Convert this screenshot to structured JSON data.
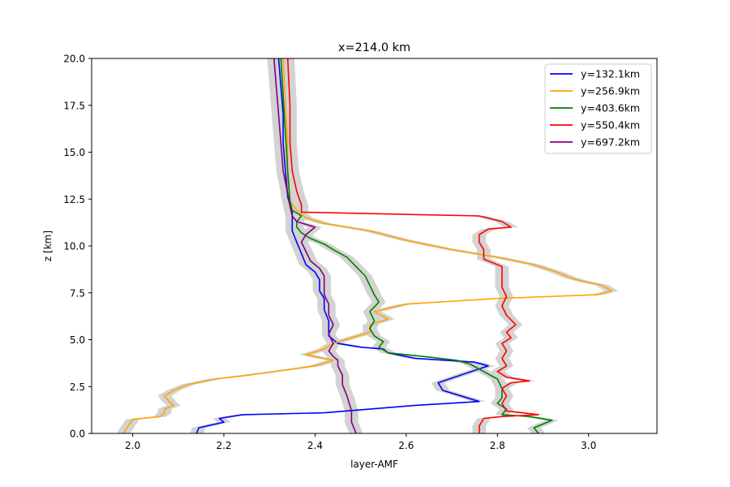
{
  "chart_data": {
    "type": "line",
    "title": "x=214.0 km",
    "xlabel": "layer-AMF",
    "ylabel": "z [km]",
    "xlim": [
      1.91,
      3.15
    ],
    "ylim": [
      0,
      20
    ],
    "xticks": [
      2.0,
      2.2,
      2.4,
      2.6,
      2.8,
      3.0
    ],
    "xtick_labels": [
      "2.0",
      "2.2",
      "2.4",
      "2.6",
      "2.8",
      "3.0"
    ],
    "yticks": [
      0,
      2.5,
      5,
      7.5,
      10,
      12.5,
      15,
      17.5,
      20
    ],
    "ytick_labels": [
      "0.0",
      "2.5",
      "5.0",
      "7.5",
      "10.0",
      "12.5",
      "15.0",
      "17.5",
      "20.0"
    ],
    "grid": false,
    "legend_position": "top-right",
    "uncertainty_band": {
      "color": "#d3d3d3",
      "half_width": 0.015
    },
    "series": [
      {
        "name": "y=132.1km",
        "color": "#0000ff",
        "points": [
          [
            2.14,
            0.0
          ],
          [
            2.145,
            0.3
          ],
          [
            2.2,
            0.6
          ],
          [
            2.19,
            0.8
          ],
          [
            2.24,
            1.0
          ],
          [
            2.42,
            1.1
          ],
          [
            2.62,
            1.5
          ],
          [
            2.76,
            1.7
          ],
          [
            2.72,
            2.0
          ],
          [
            2.68,
            2.3
          ],
          [
            2.67,
            2.7
          ],
          [
            2.73,
            3.2
          ],
          [
            2.78,
            3.6
          ],
          [
            2.75,
            3.8
          ],
          [
            2.62,
            4.0
          ],
          [
            2.56,
            4.3
          ],
          [
            2.55,
            4.5
          ],
          [
            2.5,
            4.6
          ],
          [
            2.45,
            4.8
          ],
          [
            2.43,
            5.2
          ],
          [
            2.43,
            6.0
          ],
          [
            2.42,
            6.6
          ],
          [
            2.42,
            7.2
          ],
          [
            2.41,
            7.6
          ],
          [
            2.41,
            8.2
          ],
          [
            2.4,
            8.6
          ],
          [
            2.38,
            9.0
          ],
          [
            2.37,
            9.6
          ],
          [
            2.36,
            10.2
          ],
          [
            2.35,
            10.8
          ],
          [
            2.35,
            11.3
          ],
          [
            2.35,
            11.8
          ],
          [
            2.34,
            12.6
          ],
          [
            2.335,
            14.0
          ],
          [
            2.33,
            15.5
          ],
          [
            2.33,
            17.0
          ],
          [
            2.325,
            18.5
          ],
          [
            2.32,
            20.0
          ]
        ]
      },
      {
        "name": "y=256.9km",
        "color": "#ffa500",
        "points": [
          [
            1.98,
            0.0
          ],
          [
            1.99,
            0.4
          ],
          [
            2.0,
            0.75
          ],
          [
            2.06,
            0.9
          ],
          [
            2.07,
            1.1
          ],
          [
            2.07,
            1.3
          ],
          [
            2.09,
            1.5
          ],
          [
            2.08,
            1.7
          ],
          [
            2.07,
            2.0
          ],
          [
            2.09,
            2.3
          ],
          [
            2.12,
            2.6
          ],
          [
            2.18,
            2.9
          ],
          [
            2.25,
            3.1
          ],
          [
            2.34,
            3.4
          ],
          [
            2.4,
            3.6
          ],
          [
            2.44,
            3.9
          ],
          [
            2.4,
            4.1
          ],
          [
            2.38,
            4.2
          ],
          [
            2.42,
            4.5
          ],
          [
            2.44,
            4.8
          ],
          [
            2.48,
            5.1
          ],
          [
            2.52,
            5.4
          ],
          [
            2.52,
            5.8
          ],
          [
            2.56,
            6.1
          ],
          [
            2.53,
            6.5
          ],
          [
            2.6,
            6.9
          ],
          [
            2.8,
            7.2
          ],
          [
            3.02,
            7.4
          ],
          [
            3.05,
            7.6
          ],
          [
            3.03,
            7.9
          ],
          [
            2.99,
            8.1
          ],
          [
            2.96,
            8.3
          ],
          [
            2.93,
            8.6
          ],
          [
            2.88,
            9.0
          ],
          [
            2.8,
            9.4
          ],
          [
            2.7,
            9.8
          ],
          [
            2.6,
            10.3
          ],
          [
            2.52,
            10.8
          ],
          [
            2.42,
            11.2
          ],
          [
            2.38,
            11.5
          ],
          [
            2.36,
            11.9
          ],
          [
            2.345,
            12.4
          ],
          [
            2.34,
            13.5
          ],
          [
            2.34,
            15.5
          ],
          [
            2.335,
            17.5
          ],
          [
            2.33,
            20.0
          ]
        ]
      },
      {
        "name": "y=403.6km",
        "color": "#008000",
        "points": [
          [
            2.89,
            0.0
          ],
          [
            2.88,
            0.3
          ],
          [
            2.92,
            0.7
          ],
          [
            2.87,
            0.9
          ],
          [
            2.81,
            1.0
          ],
          [
            2.82,
            1.3
          ],
          [
            2.8,
            1.6
          ],
          [
            2.81,
            1.9
          ],
          [
            2.81,
            2.4
          ],
          [
            2.8,
            2.9
          ],
          [
            2.77,
            3.3
          ],
          [
            2.74,
            3.7
          ],
          [
            2.71,
            3.9
          ],
          [
            2.64,
            4.1
          ],
          [
            2.56,
            4.3
          ],
          [
            2.54,
            4.6
          ],
          [
            2.55,
            4.9
          ],
          [
            2.53,
            5.2
          ],
          [
            2.52,
            5.6
          ],
          [
            2.53,
            6.0
          ],
          [
            2.52,
            6.5
          ],
          [
            2.54,
            7.0
          ],
          [
            2.53,
            7.4
          ],
          [
            2.52,
            7.9
          ],
          [
            2.51,
            8.4
          ],
          [
            2.49,
            8.9
          ],
          [
            2.47,
            9.4
          ],
          [
            2.44,
            9.8
          ],
          [
            2.42,
            10.1
          ],
          [
            2.39,
            10.4
          ],
          [
            2.37,
            10.7
          ],
          [
            2.36,
            11.0
          ],
          [
            2.36,
            11.3
          ],
          [
            2.37,
            11.6
          ],
          [
            2.35,
            11.9
          ],
          [
            2.345,
            12.4
          ],
          [
            2.34,
            14.0
          ],
          [
            2.335,
            16.0
          ],
          [
            2.33,
            18.0
          ],
          [
            2.325,
            20.0
          ]
        ]
      },
      {
        "name": "y=550.4km",
        "color": "#ff0000",
        "points": [
          [
            2.76,
            0.0
          ],
          [
            2.76,
            0.4
          ],
          [
            2.77,
            0.8
          ],
          [
            2.81,
            0.9
          ],
          [
            2.89,
            1.0
          ],
          [
            2.82,
            1.2
          ],
          [
            2.81,
            1.6
          ],
          [
            2.82,
            2.0
          ],
          [
            2.81,
            2.4
          ],
          [
            2.83,
            2.7
          ],
          [
            2.87,
            2.8
          ],
          [
            2.82,
            3.0
          ],
          [
            2.8,
            3.3
          ],
          [
            2.82,
            3.6
          ],
          [
            2.81,
            4.0
          ],
          [
            2.82,
            4.4
          ],
          [
            2.81,
            4.8
          ],
          [
            2.83,
            5.1
          ],
          [
            2.82,
            5.4
          ],
          [
            2.84,
            5.8
          ],
          [
            2.82,
            6.3
          ],
          [
            2.81,
            6.8
          ],
          [
            2.82,
            7.3
          ],
          [
            2.81,
            7.8
          ],
          [
            2.81,
            8.4
          ],
          [
            2.81,
            8.9
          ],
          [
            2.77,
            9.3
          ],
          [
            2.77,
            9.8
          ],
          [
            2.76,
            10.2
          ],
          [
            2.76,
            10.6
          ],
          [
            2.78,
            10.9
          ],
          [
            2.83,
            11.0
          ],
          [
            2.81,
            11.3
          ],
          [
            2.76,
            11.6
          ],
          [
            2.37,
            11.8
          ],
          [
            2.37,
            12.2
          ],
          [
            2.36,
            12.9
          ],
          [
            2.35,
            14.0
          ],
          [
            2.345,
            15.5
          ],
          [
            2.345,
            17.5
          ],
          [
            2.34,
            20.0
          ]
        ]
      },
      {
        "name": "y=697.2km",
        "color": "#800080",
        "points": [
          [
            2.49,
            0.0
          ],
          [
            2.48,
            0.6
          ],
          [
            2.48,
            1.2
          ],
          [
            2.47,
            2.0
          ],
          [
            2.46,
            2.6
          ],
          [
            2.46,
            3.1
          ],
          [
            2.45,
            3.6
          ],
          [
            2.45,
            3.9
          ],
          [
            2.44,
            4.1
          ],
          [
            2.43,
            4.4
          ],
          [
            2.44,
            4.8
          ],
          [
            2.43,
            5.3
          ],
          [
            2.44,
            5.8
          ],
          [
            2.43,
            6.3
          ],
          [
            2.43,
            6.9
          ],
          [
            2.42,
            7.4
          ],
          [
            2.42,
            7.9
          ],
          [
            2.42,
            8.4
          ],
          [
            2.41,
            8.8
          ],
          [
            2.39,
            9.2
          ],
          [
            2.38,
            9.7
          ],
          [
            2.37,
            10.2
          ],
          [
            2.38,
            10.6
          ],
          [
            2.4,
            11.0
          ],
          [
            2.36,
            11.3
          ],
          [
            2.35,
            11.6
          ],
          [
            2.345,
            12.1
          ],
          [
            2.34,
            12.8
          ],
          [
            2.33,
            14.0
          ],
          [
            2.325,
            15.5
          ],
          [
            2.32,
            17.0
          ],
          [
            2.315,
            18.5
          ],
          [
            2.31,
            20.0
          ]
        ]
      }
    ]
  }
}
